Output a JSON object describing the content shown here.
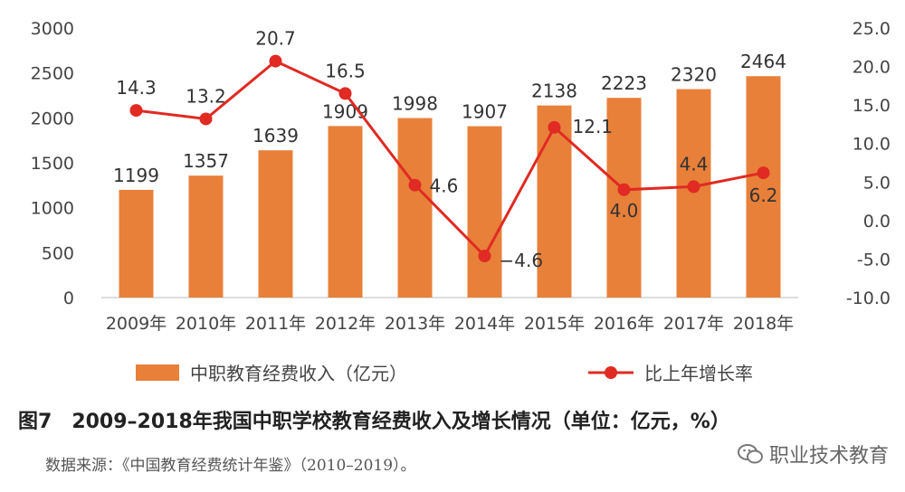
{
  "chart_data": {
    "type": "bar",
    "categories": [
      "2009年",
      "2010年",
      "2011年",
      "2012年",
      "2013年",
      "2014年",
      "2015年",
      "2016年",
      "2017年",
      "2018年"
    ],
    "series": [
      {
        "name": "中职教育经费收入（亿元）",
        "type": "bar",
        "axis": "left",
        "color": "#E8803A",
        "values": [
          1199,
          1357,
          1639,
          1909,
          1998,
          1907,
          2138,
          2223,
          2320,
          2464
        ]
      },
      {
        "name": "比上年增长率",
        "type": "line",
        "axis": "right",
        "color": "#E02A22",
        "values": [
          14.3,
          13.2,
          20.7,
          16.5,
          4.6,
          -4.6,
          12.1,
          4.0,
          4.4,
          6.2
        ]
      }
    ],
    "left_axis": {
      "min": 0,
      "max": 3000,
      "ticks": [
        "0",
        "500",
        "1000",
        "1500",
        "2000",
        "2500",
        "3000"
      ]
    },
    "right_axis": {
      "min": -10,
      "max": 25,
      "ticks": [
        "-10.0",
        "-5.0",
        "0.0",
        "5.0",
        "10.0",
        "15.0",
        "20.0",
        "25.0"
      ]
    },
    "bar_labels": [
      "1199",
      "1357",
      "1639",
      "1909",
      "1998",
      "1907",
      "2138",
      "2223",
      "2320",
      "2464"
    ],
    "line_labels": [
      "14.3",
      "13.2",
      "20.7",
      "16.5",
      "4.6",
      "−4.6",
      "12.1",
      "4.0",
      "4.4",
      "6.2"
    ],
    "legend_position": "bottom",
    "grid": false
  },
  "caption": {
    "figure_number": "图7",
    "title": "2009–2018年我国中职学校教育经费收入及增长情况（单位：亿元，%）"
  },
  "source": "数据来源：《中国教育经费统计年鉴》（2010–2019）。",
  "watermark": "职业技术教育"
}
